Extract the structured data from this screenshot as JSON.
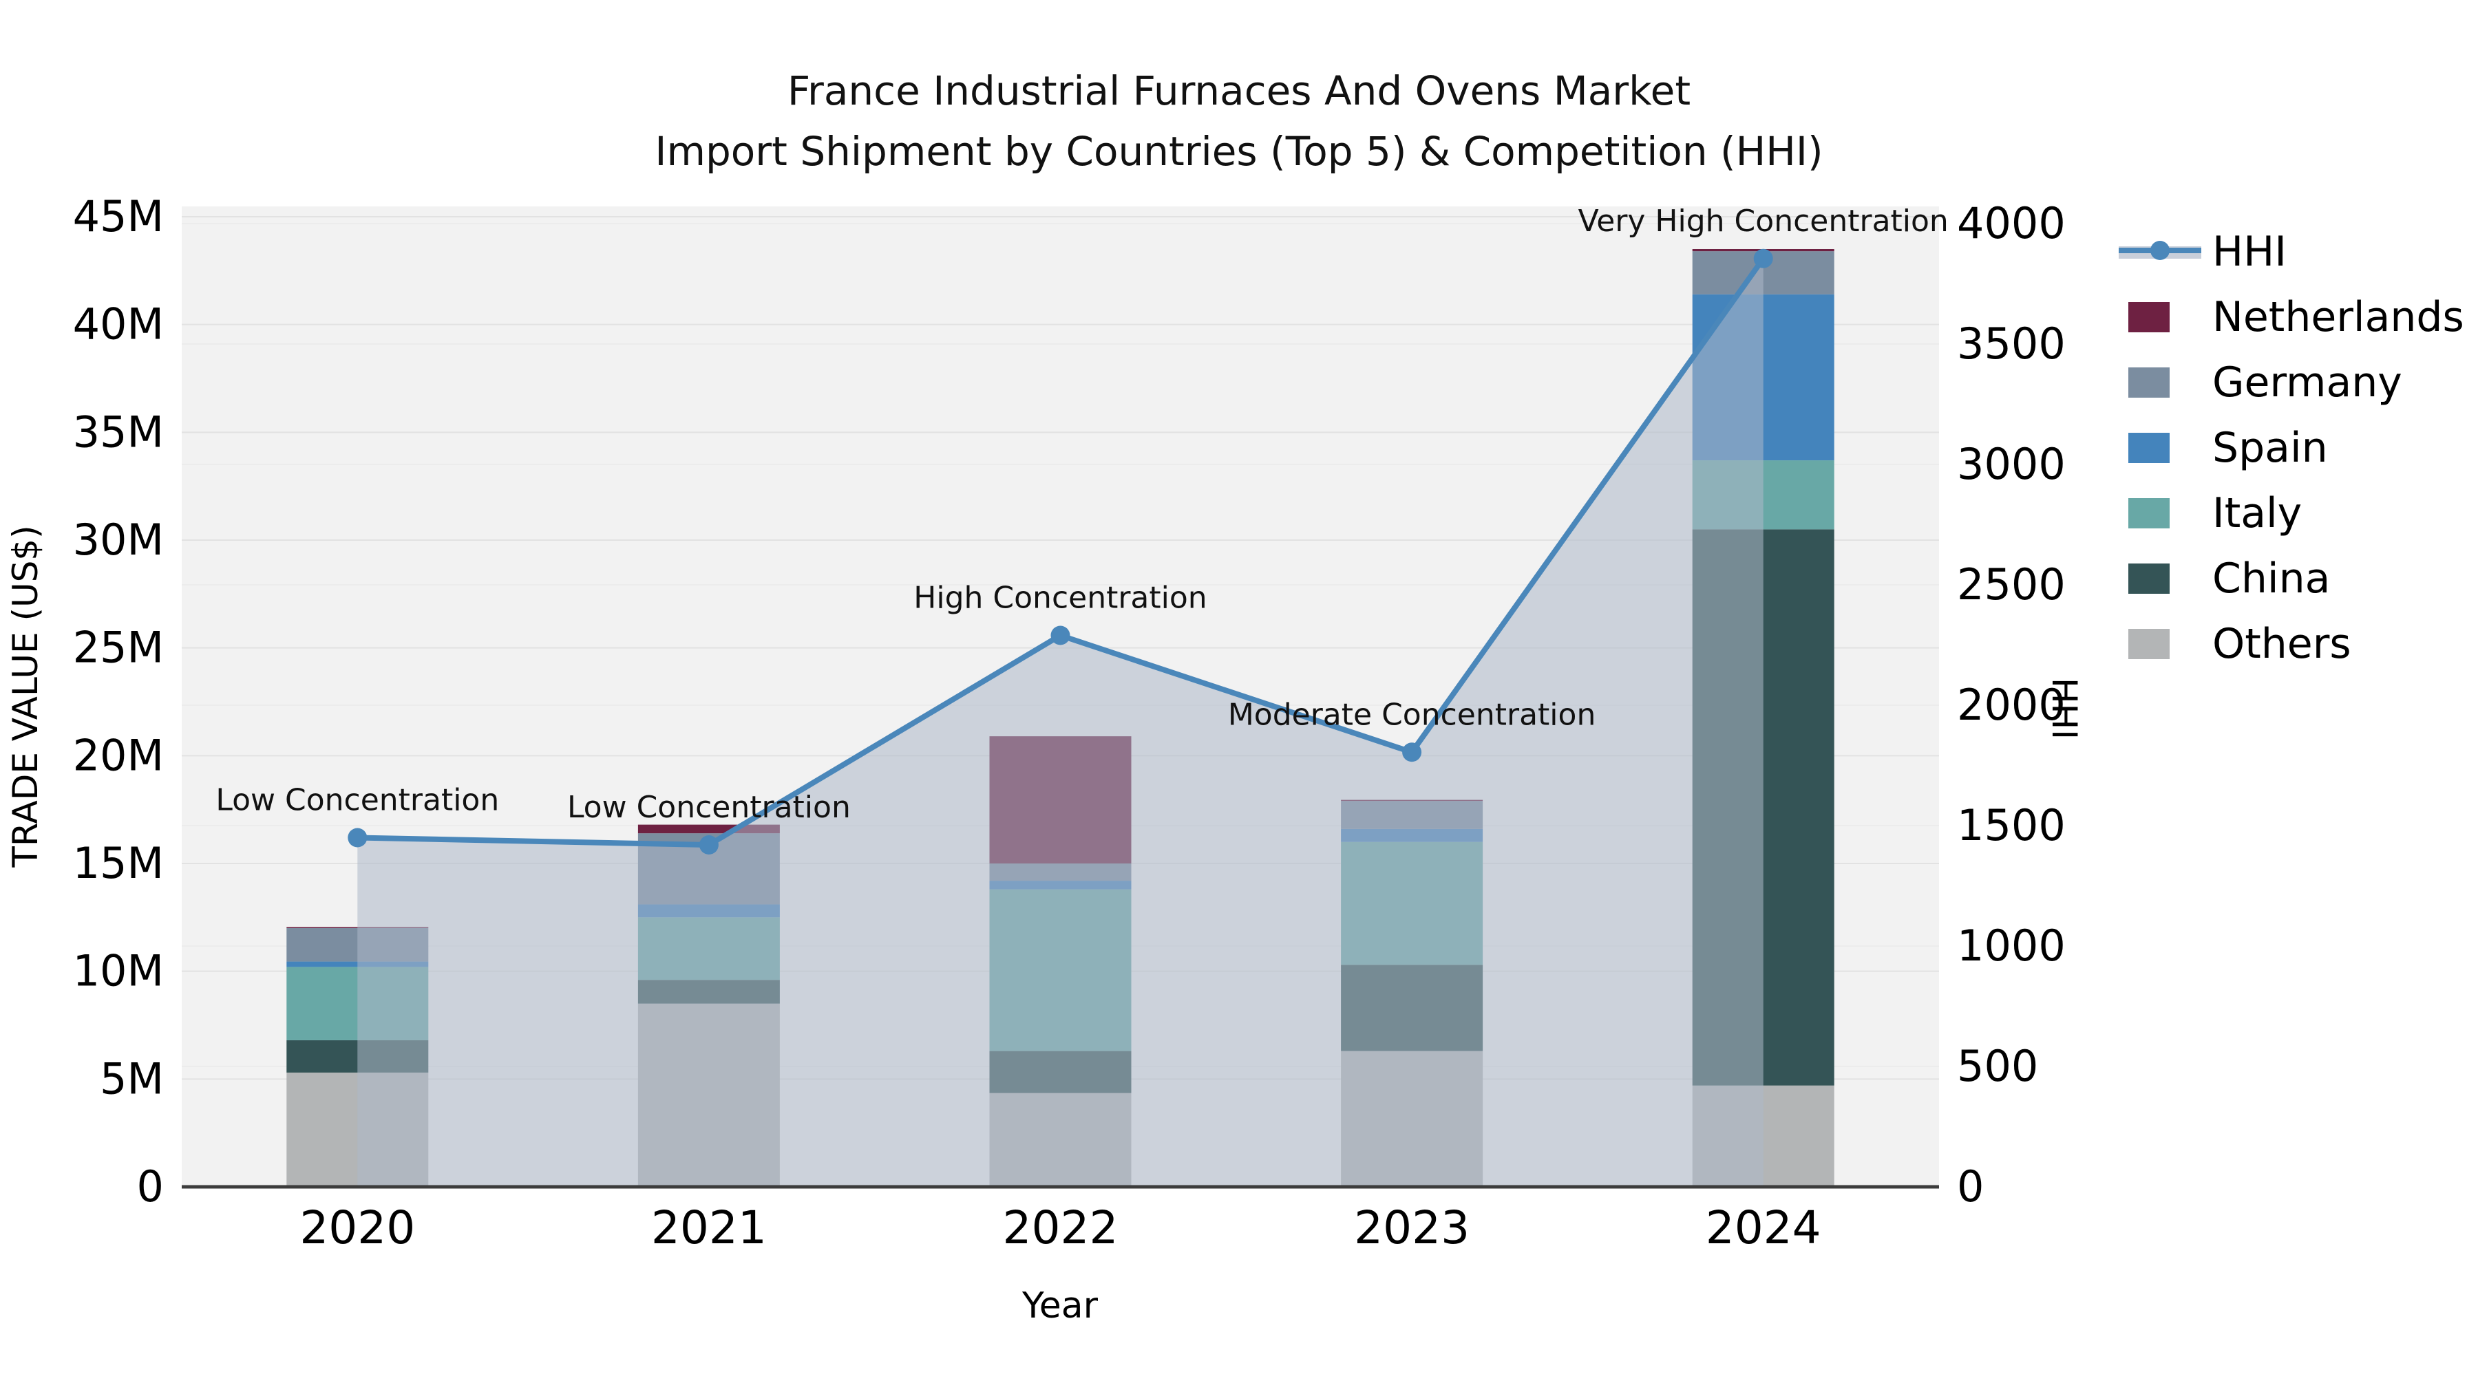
{
  "title": {
    "line1": "France Industrial Furnaces And Ovens Market",
    "line2": "Import Shipment by Countries (Top 5) & Competition (HHI)"
  },
  "axes": {
    "left": {
      "title": "TRADE VALUE (US$)"
    },
    "right": {
      "title": "HHI"
    },
    "x": {
      "title": "Year"
    }
  },
  "legend": {
    "items": [
      {
        "name": "HHI",
        "type": "line",
        "color": "#4a87ba",
        "band_color": "#c9cfda"
      },
      {
        "name": "Netherlands",
        "type": "swatch",
        "color": "#6e2142"
      },
      {
        "name": "Germany",
        "type": "swatch",
        "color": "#7b8da0"
      },
      {
        "name": "Spain",
        "type": "swatch",
        "color": "#4484bc"
      },
      {
        "name": "Italy",
        "type": "swatch",
        "color": "#68a8a6"
      },
      {
        "name": "China",
        "type": "swatch",
        "color": "#345456"
      },
      {
        "name": "Others",
        "type": "swatch",
        "color": "#b3b5b6"
      }
    ]
  },
  "chart_data": {
    "type": "combo: stacked-bar (left axis) + line (right axis)",
    "title": "France Industrial Furnaces And Ovens Market",
    "subtitle": "Import Shipment by Countries (Top 5) & Competition (HHI)",
    "categories": [
      "2020",
      "2021",
      "2022",
      "2023",
      "2024"
    ],
    "stack_order_bottom_to_top": [
      "Others",
      "China",
      "Italy",
      "Spain",
      "Germany",
      "Netherlands"
    ],
    "series": [
      {
        "name": "Netherlands",
        "color": "#6e2142",
        "values_musd": [
          0.05,
          0.4,
          5.9,
          0.05,
          0.1
        ]
      },
      {
        "name": "Germany",
        "color": "#7b8da0",
        "values_musd": [
          1.55,
          3.3,
          0.8,
          1.3,
          2.0
        ]
      },
      {
        "name": "Spain",
        "color": "#4484bc",
        "values_musd": [
          0.25,
          0.6,
          0.4,
          0.6,
          7.7
        ]
      },
      {
        "name": "Italy",
        "color": "#68a8a6",
        "values_musd": [
          3.4,
          2.9,
          7.5,
          5.7,
          3.2
        ]
      },
      {
        "name": "China",
        "color": "#345456",
        "values_musd": [
          1.5,
          1.1,
          1.95,
          4.0,
          25.8
        ]
      },
      {
        "name": "Others",
        "color": "#b3b5b6",
        "values_musd": [
          5.3,
          8.5,
          4.35,
          6.3,
          4.7
        ]
      }
    ],
    "bar_totals_musd": [
      12.05,
      16.8,
      20.9,
      17.95,
      43.5
    ],
    "hhi": {
      "name": "HHI",
      "color": "#4a87ba",
      "area_color": "rgba(173,184,201,0.55)",
      "values": [
        1450,
        1420,
        2290,
        1805,
        3855
      ]
    },
    "annotations": [
      "Low Concentration",
      "Low Concentration",
      "High Concentration",
      "Moderate Concentration",
      "Very High Concentration"
    ],
    "left_axis": {
      "ticks": [
        "0",
        "5M",
        "10M",
        "15M",
        "20M",
        "25M",
        "30M",
        "35M",
        "40M",
        "45M"
      ],
      "max_musd": 45
    },
    "right_axis": {
      "ticks": [
        "0",
        "500",
        "1000",
        "1500",
        "2000",
        "2500",
        "3000",
        "3500",
        "4000"
      ],
      "max": 4000
    },
    "x_axis": {
      "title": "Year"
    },
    "layout_hints": {
      "grid": "on (both axes)",
      "legend_position": "right, outside plot",
      "plot_background": "#f2f2f2"
    }
  }
}
